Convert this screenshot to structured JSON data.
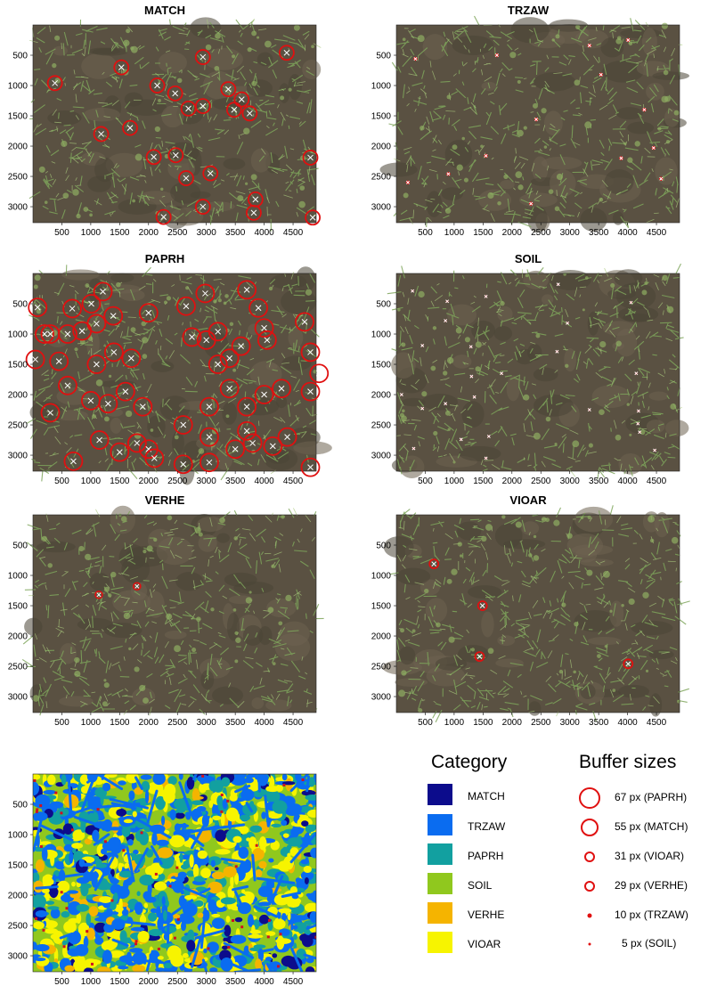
{
  "figure": {
    "panels": [
      {
        "title": "MATCH",
        "marker": "circle-large",
        "markers": [
          [
            380,
            960
          ],
          [
            1530,
            700
          ],
          [
            2940,
            530
          ],
          [
            4390,
            460
          ],
          [
            2150,
            1000
          ],
          [
            2460,
            1130
          ],
          [
            3380,
            1060
          ],
          [
            3610,
            1230
          ],
          [
            3480,
            1400
          ],
          [
            3750,
            1460
          ],
          [
            2690,
            1380
          ],
          [
            2940,
            1340
          ],
          [
            1180,
            1800
          ],
          [
            1680,
            1700
          ],
          [
            2090,
            2180
          ],
          [
            2470,
            2150
          ],
          [
            2650,
            2530
          ],
          [
            3070,
            2450
          ],
          [
            4800,
            2190
          ],
          [
            2940,
            3000
          ],
          [
            3850,
            2880
          ],
          [
            3820,
            3100
          ],
          [
            2260,
            3170
          ],
          [
            4840,
            3180
          ]
        ]
      },
      {
        "title": "TRZAW",
        "marker": "dot-small",
        "markers": [
          [
            330,
            560
          ],
          [
            1740,
            500
          ],
          [
            3340,
            340
          ],
          [
            4010,
            250
          ],
          [
            3540,
            820
          ],
          [
            2420,
            1560
          ],
          [
            4290,
            1400
          ],
          [
            1550,
            2160
          ],
          [
            3890,
            2200
          ],
          [
            4450,
            2030
          ],
          [
            900,
            2460
          ],
          [
            4580,
            2540
          ],
          [
            200,
            2600
          ],
          [
            2330,
            2950
          ]
        ]
      },
      {
        "title": "PAPRH",
        "marker": "circle-xl",
        "markers": [
          [
            80,
            560
          ],
          [
            680,
            580
          ],
          [
            1010,
            500
          ],
          [
            1210,
            300
          ],
          [
            1390,
            700
          ],
          [
            200,
            1000
          ],
          [
            600,
            1000
          ],
          [
            850,
            950
          ],
          [
            1100,
            830
          ],
          [
            2000,
            650
          ],
          [
            2650,
            540
          ],
          [
            2980,
            330
          ],
          [
            3700,
            270
          ],
          [
            3900,
            570
          ],
          [
            4700,
            800
          ],
          [
            4000,
            900
          ],
          [
            4050,
            1100
          ],
          [
            2750,
            1050
          ],
          [
            3000,
            1100
          ],
          [
            3200,
            960
          ],
          [
            3600,
            1200
          ],
          [
            3400,
            1400
          ],
          [
            3200,
            1500
          ],
          [
            1400,
            1300
          ],
          [
            1100,
            1500
          ],
          [
            450,
            1450
          ],
          [
            300,
            1000
          ],
          [
            1700,
            1400
          ],
          [
            40,
            1420
          ],
          [
            4800,
            1300
          ],
          [
            4950,
            1650
          ],
          [
            600,
            1850
          ],
          [
            1000,
            2100
          ],
          [
            1300,
            2150
          ],
          [
            1600,
            1950
          ],
          [
            1900,
            2200
          ],
          [
            3050,
            2200
          ],
          [
            3400,
            1900
          ],
          [
            3700,
            2200
          ],
          [
            4000,
            2000
          ],
          [
            4300,
            1900
          ],
          [
            4800,
            1950
          ],
          [
            300,
            2300
          ],
          [
            1150,
            2750
          ],
          [
            1500,
            2950
          ],
          [
            1800,
            2800
          ],
          [
            2000,
            2900
          ],
          [
            2100,
            3050
          ],
          [
            2600,
            2500
          ],
          [
            3050,
            2700
          ],
          [
            3500,
            2900
          ],
          [
            3700,
            2600
          ],
          [
            3800,
            2800
          ],
          [
            4150,
            2850
          ],
          [
            4400,
            2700
          ],
          [
            700,
            3100
          ],
          [
            2600,
            3150
          ],
          [
            3050,
            3120
          ],
          [
            4800,
            3200
          ]
        ]
      },
      {
        "title": "SOIL",
        "marker": "dot-tiny",
        "markers": [
          [
            280,
            290
          ],
          [
            880,
            460
          ],
          [
            1550,
            380
          ],
          [
            2800,
            180
          ],
          [
            4060,
            480
          ],
          [
            850,
            780
          ],
          [
            2960,
            820
          ],
          [
            450,
            1190
          ],
          [
            1290,
            1210
          ],
          [
            2780,
            1290
          ],
          [
            1300,
            1700
          ],
          [
            1820,
            1650
          ],
          [
            4150,
            1650
          ],
          [
            1350,
            2040
          ],
          [
            90,
            2000
          ],
          [
            450,
            2230
          ],
          [
            850,
            2150
          ],
          [
            3340,
            2250
          ],
          [
            4190,
            2270
          ],
          [
            4180,
            2480
          ],
          [
            4210,
            2620
          ],
          [
            1120,
            2740
          ],
          [
            1600,
            2690
          ],
          [
            300,
            2890
          ],
          [
            1550,
            3050
          ],
          [
            4470,
            2920
          ]
        ]
      },
      {
        "title": "VERHE",
        "marker": "circle-small",
        "markers": [
          [
            1140,
            1320
          ],
          [
            1800,
            1180
          ]
        ]
      },
      {
        "title": "VIOAR",
        "marker": "circle-medium",
        "markers": [
          [
            650,
            810
          ],
          [
            1490,
            1500
          ],
          [
            1440,
            2340
          ],
          [
            4010,
            2460
          ]
        ]
      }
    ],
    "axes": {
      "x_ticks": [
        500,
        1000,
        1500,
        2000,
        2500,
        3000,
        3500,
        4000,
        4500
      ],
      "y_ticks": [
        500,
        1000,
        1500,
        2000,
        2500,
        3000
      ],
      "x_range": [
        0,
        4900
      ],
      "y_range": [
        0,
        3264
      ]
    },
    "category_legend": {
      "heading": "Category",
      "items": [
        {
          "label": "MATCH",
          "color": "#0c0c8c"
        },
        {
          "label": "TRZAW",
          "color": "#0a6cf0"
        },
        {
          "label": "PAPRH",
          "color": "#12a0a0"
        },
        {
          "label": "SOIL",
          "color": "#90c81e"
        },
        {
          "label": "VERHE",
          "color": "#f5b400"
        },
        {
          "label": "VIOAR",
          "color": "#f7f400"
        }
      ]
    },
    "buffer_legend": {
      "heading": "Buffer sizes",
      "items": [
        {
          "label": "67 px (PAPRH)",
          "marker": "circle-xl"
        },
        {
          "label": "55 px (MATCH)",
          "marker": "circle-large"
        },
        {
          "label": "31 px (VIOAR)",
          "marker": "circle-medium"
        },
        {
          "label": "29 px (VERHE)",
          "marker": "circle-small"
        },
        {
          "label": "10 px (TRZAW)",
          "marker": "dot-small"
        },
        {
          "label": "5 px (SOIL)",
          "marker": "dot-tiny"
        }
      ]
    },
    "colors": {
      "marker": "#e01010",
      "cross": "#ffffff"
    }
  }
}
